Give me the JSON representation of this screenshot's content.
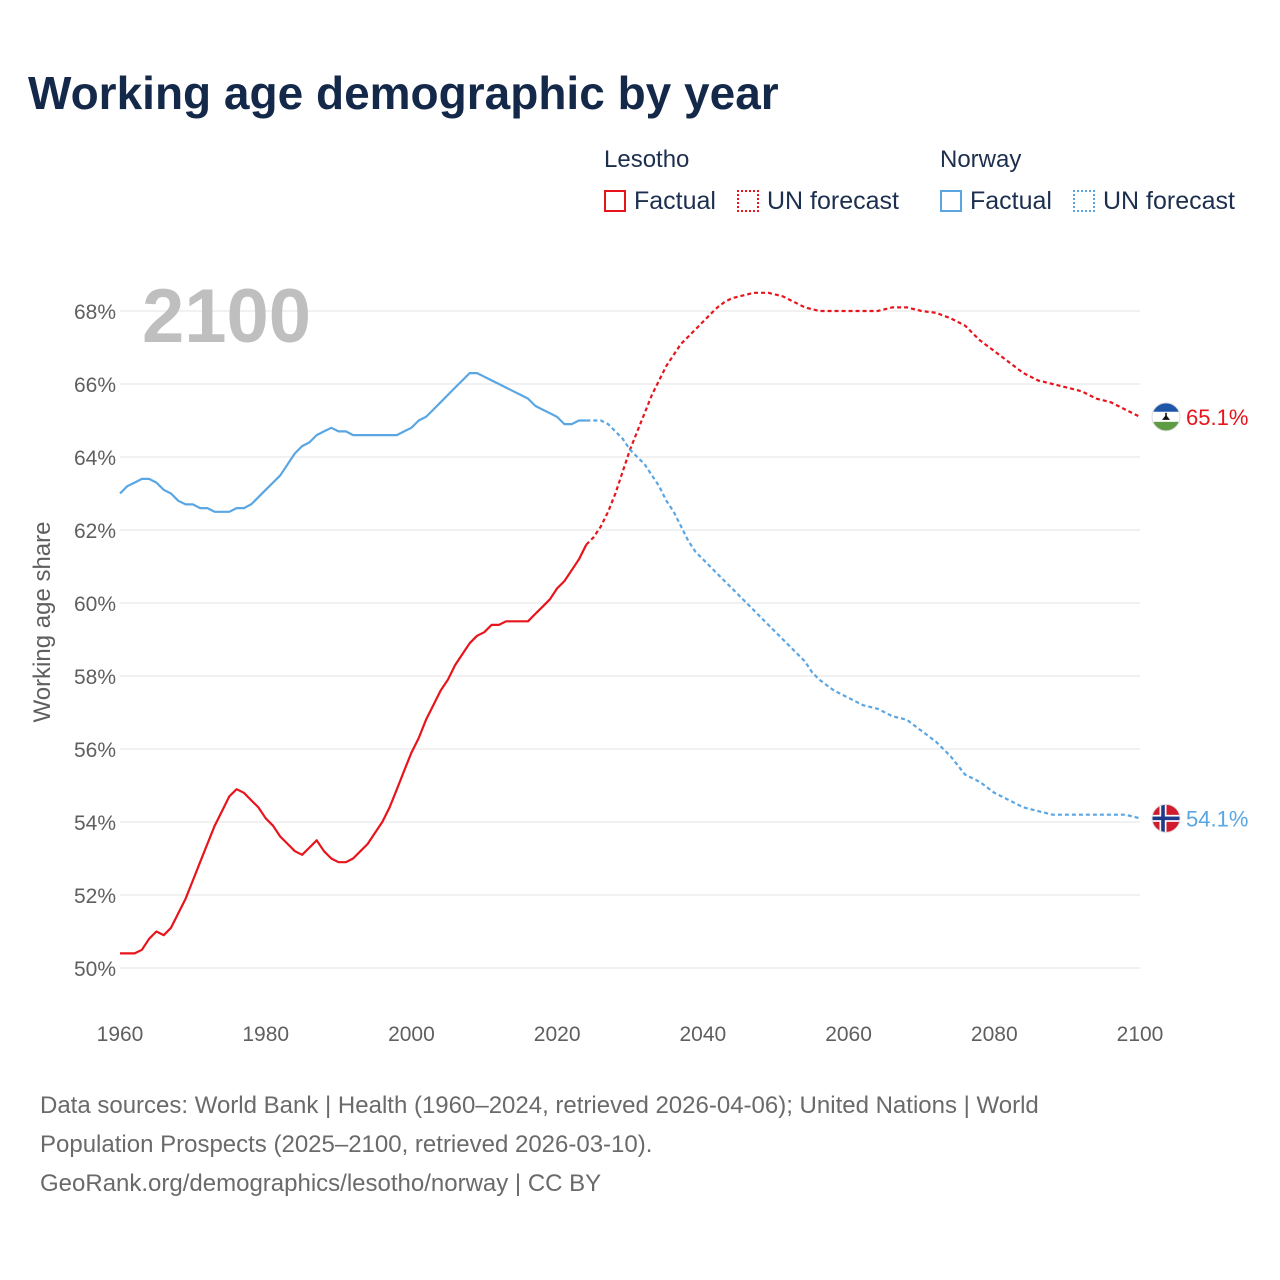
{
  "title": "Working age demographic by year",
  "legend": {
    "groups": [
      {
        "name": "Lesotho",
        "factual_label": "Factual",
        "forecast_label": "UN forecast",
        "color": "#e8141c"
      },
      {
        "name": "Norway",
        "factual_label": "Factual",
        "forecast_label": "UN forecast",
        "color": "#5aa6e3"
      }
    ]
  },
  "year_overlay": "2100",
  "footer": {
    "line1": "Data sources: World Bank | Health (1960–2024, retrieved 2026-04-06); United Nations | World",
    "line2": "Population Prospects (2025–2100, retrieved 2026-03-10).",
    "line3": "GeoRank.org/demographics/lesotho/norway | CC BY"
  },
  "chart_data": {
    "type": "line",
    "title": "Working age demographic by year",
    "xlabel": "",
    "ylabel": "Working age share",
    "xlim": [
      1960,
      2100
    ],
    "ylim": [
      50,
      69
    ],
    "x_ticks": [
      1960,
      1980,
      2000,
      2020,
      2040,
      2060,
      2080,
      2100
    ],
    "x_tick_labels": [
      "1960",
      "1980",
      "2000",
      "2020",
      "2040",
      "2060",
      "2080",
      "2100"
    ],
    "y_ticks": [
      50,
      52,
      54,
      56,
      58,
      60,
      62,
      64,
      66,
      68
    ],
    "y_tick_labels": [
      "50%",
      "52%",
      "54%",
      "56%",
      "58%",
      "60%",
      "62%",
      "64%",
      "66%",
      "68%"
    ],
    "grid": true,
    "factual_end_year": 2024,
    "series": [
      {
        "name": "Lesotho",
        "color": "#e8141c",
        "end_label": "65.1%",
        "flag": "lesotho-flag",
        "points": [
          [
            1960,
            50.4
          ],
          [
            1961,
            50.4
          ],
          [
            1962,
            50.4
          ],
          [
            1963,
            50.5
          ],
          [
            1964,
            50.8
          ],
          [
            1965,
            51.0
          ],
          [
            1966,
            50.9
          ],
          [
            1967,
            51.1
          ],
          [
            1968,
            51.5
          ],
          [
            1969,
            51.9
          ],
          [
            1970,
            52.4
          ],
          [
            1971,
            52.9
          ],
          [
            1972,
            53.4
          ],
          [
            1973,
            53.9
          ],
          [
            1974,
            54.3
          ],
          [
            1975,
            54.7
          ],
          [
            1976,
            54.9
          ],
          [
            1977,
            54.8
          ],
          [
            1978,
            54.6
          ],
          [
            1979,
            54.4
          ],
          [
            1980,
            54.1
          ],
          [
            1981,
            53.9
          ],
          [
            1982,
            53.6
          ],
          [
            1983,
            53.4
          ],
          [
            1984,
            53.2
          ],
          [
            1985,
            53.1
          ],
          [
            1986,
            53.3
          ],
          [
            1987,
            53.5
          ],
          [
            1988,
            53.2
          ],
          [
            1989,
            53.0
          ],
          [
            1990,
            52.9
          ],
          [
            1991,
            52.9
          ],
          [
            1992,
            53.0
          ],
          [
            1993,
            53.2
          ],
          [
            1994,
            53.4
          ],
          [
            1995,
            53.7
          ],
          [
            1996,
            54.0
          ],
          [
            1997,
            54.4
          ],
          [
            1998,
            54.9
          ],
          [
            1999,
            55.4
          ],
          [
            2000,
            55.9
          ],
          [
            2001,
            56.3
          ],
          [
            2002,
            56.8
          ],
          [
            2003,
            57.2
          ],
          [
            2004,
            57.6
          ],
          [
            2005,
            57.9
          ],
          [
            2006,
            58.3
          ],
          [
            2007,
            58.6
          ],
          [
            2008,
            58.9
          ],
          [
            2009,
            59.1
          ],
          [
            2010,
            59.2
          ],
          [
            2011,
            59.4
          ],
          [
            2012,
            59.4
          ],
          [
            2013,
            59.5
          ],
          [
            2014,
            59.5
          ],
          [
            2015,
            59.5
          ],
          [
            2016,
            59.5
          ],
          [
            2017,
            59.7
          ],
          [
            2018,
            59.9
          ],
          [
            2019,
            60.1
          ],
          [
            2020,
            60.4
          ],
          [
            2021,
            60.6
          ],
          [
            2022,
            60.9
          ],
          [
            2023,
            61.2
          ],
          [
            2024,
            61.6
          ],
          [
            2025,
            61.8
          ],
          [
            2026,
            62.1
          ],
          [
            2027,
            62.5
          ],
          [
            2028,
            63.0
          ],
          [
            2029,
            63.6
          ],
          [
            2030,
            64.2
          ],
          [
            2031,
            64.7
          ],
          [
            2032,
            65.2
          ],
          [
            2033,
            65.7
          ],
          [
            2034,
            66.1
          ],
          [
            2035,
            66.5
          ],
          [
            2036,
            66.8
          ],
          [
            2037,
            67.1
          ],
          [
            2038,
            67.3
          ],
          [
            2039,
            67.5
          ],
          [
            2040,
            67.7
          ],
          [
            2041,
            67.9
          ],
          [
            2042,
            68.1
          ],
          [
            2043,
            68.25
          ],
          [
            2044,
            68.35
          ],
          [
            2045,
            68.4
          ],
          [
            2046,
            68.45
          ],
          [
            2047,
            68.5
          ],
          [
            2048,
            68.5
          ],
          [
            2049,
            68.5
          ],
          [
            2050,
            68.45
          ],
          [
            2051,
            68.4
          ],
          [
            2052,
            68.3
          ],
          [
            2053,
            68.2
          ],
          [
            2054,
            68.1
          ],
          [
            2055,
            68.05
          ],
          [
            2056,
            68.0
          ],
          [
            2058,
            68.0
          ],
          [
            2060,
            68.0
          ],
          [
            2062,
            68.0
          ],
          [
            2064,
            68.0
          ],
          [
            2065,
            68.05
          ],
          [
            2066,
            68.1
          ],
          [
            2068,
            68.1
          ],
          [
            2070,
            68.0
          ],
          [
            2072,
            67.95
          ],
          [
            2074,
            67.8
          ],
          [
            2076,
            67.6
          ],
          [
            2078,
            67.2
          ],
          [
            2080,
            66.9
          ],
          [
            2082,
            66.6
          ],
          [
            2084,
            66.3
          ],
          [
            2086,
            66.1
          ],
          [
            2088,
            66.0
          ],
          [
            2090,
            65.9
          ],
          [
            2092,
            65.8
          ],
          [
            2094,
            65.6
          ],
          [
            2096,
            65.5
          ],
          [
            2098,
            65.3
          ],
          [
            2100,
            65.1
          ]
        ]
      },
      {
        "name": "Norway",
        "color": "#5aa6e3",
        "end_label": "54.1%",
        "flag": "norway-flag",
        "points": [
          [
            1960,
            63.0
          ],
          [
            1961,
            63.2
          ],
          [
            1962,
            63.3
          ],
          [
            1963,
            63.4
          ],
          [
            1964,
            63.4
          ],
          [
            1965,
            63.3
          ],
          [
            1966,
            63.1
          ],
          [
            1967,
            63.0
          ],
          [
            1968,
            62.8
          ],
          [
            1969,
            62.7
          ],
          [
            1970,
            62.7
          ],
          [
            1971,
            62.6
          ],
          [
            1972,
            62.6
          ],
          [
            1973,
            62.5
          ],
          [
            1974,
            62.5
          ],
          [
            1975,
            62.5
          ],
          [
            1976,
            62.6
          ],
          [
            1977,
            62.6
          ],
          [
            1978,
            62.7
          ],
          [
            1979,
            62.9
          ],
          [
            1980,
            63.1
          ],
          [
            1981,
            63.3
          ],
          [
            1982,
            63.5
          ],
          [
            1983,
            63.8
          ],
          [
            1984,
            64.1
          ],
          [
            1985,
            64.3
          ],
          [
            1986,
            64.4
          ],
          [
            1987,
            64.6
          ],
          [
            1988,
            64.7
          ],
          [
            1989,
            64.8
          ],
          [
            1990,
            64.7
          ],
          [
            1991,
            64.7
          ],
          [
            1992,
            64.6
          ],
          [
            1993,
            64.6
          ],
          [
            1994,
            64.6
          ],
          [
            1995,
            64.6
          ],
          [
            1996,
            64.6
          ],
          [
            1997,
            64.6
          ],
          [
            1998,
            64.6
          ],
          [
            1999,
            64.7
          ],
          [
            2000,
            64.8
          ],
          [
            2001,
            65.0
          ],
          [
            2002,
            65.1
          ],
          [
            2003,
            65.3
          ],
          [
            2004,
            65.5
          ],
          [
            2005,
            65.7
          ],
          [
            2006,
            65.9
          ],
          [
            2007,
            66.1
          ],
          [
            2008,
            66.3
          ],
          [
            2009,
            66.3
          ],
          [
            2010,
            66.2
          ],
          [
            2011,
            66.1
          ],
          [
            2012,
            66.0
          ],
          [
            2013,
            65.9
          ],
          [
            2014,
            65.8
          ],
          [
            2015,
            65.7
          ],
          [
            2016,
            65.6
          ],
          [
            2017,
            65.4
          ],
          [
            2018,
            65.3
          ],
          [
            2019,
            65.2
          ],
          [
            2020,
            65.1
          ],
          [
            2021,
            64.9
          ],
          [
            2022,
            64.9
          ],
          [
            2023,
            65.0
          ],
          [
            2024,
            65.0
          ],
          [
            2025,
            65.0
          ],
          [
            2026,
            65.0
          ],
          [
            2027,
            64.9
          ],
          [
            2028,
            64.7
          ],
          [
            2029,
            64.5
          ],
          [
            2030,
            64.2
          ],
          [
            2031,
            64.0
          ],
          [
            2032,
            63.8
          ],
          [
            2033,
            63.5
          ],
          [
            2034,
            63.2
          ],
          [
            2035,
            62.8
          ],
          [
            2036,
            62.5
          ],
          [
            2037,
            62.1
          ],
          [
            2038,
            61.7
          ],
          [
            2039,
            61.4
          ],
          [
            2040,
            61.2
          ],
          [
            2041,
            61.0
          ],
          [
            2042,
            60.8
          ],
          [
            2043,
            60.6
          ],
          [
            2044,
            60.4
          ],
          [
            2045,
            60.2
          ],
          [
            2046,
            60.0
          ],
          [
            2047,
            59.8
          ],
          [
            2048,
            59.6
          ],
          [
            2049,
            59.4
          ],
          [
            2050,
            59.2
          ],
          [
            2051,
            59.0
          ],
          [
            2052,
            58.8
          ],
          [
            2053,
            58.6
          ],
          [
            2054,
            58.4
          ],
          [
            2055,
            58.1
          ],
          [
            2056,
            57.9
          ],
          [
            2058,
            57.6
          ],
          [
            2060,
            57.4
          ],
          [
            2062,
            57.2
          ],
          [
            2064,
            57.1
          ],
          [
            2066,
            56.9
          ],
          [
            2068,
            56.8
          ],
          [
            2070,
            56.5
          ],
          [
            2072,
            56.2
          ],
          [
            2074,
            55.8
          ],
          [
            2076,
            55.3
          ],
          [
            2078,
            55.1
          ],
          [
            2080,
            54.8
          ],
          [
            2082,
            54.6
          ],
          [
            2084,
            54.4
          ],
          [
            2086,
            54.3
          ],
          [
            2088,
            54.2
          ],
          [
            2090,
            54.2
          ],
          [
            2092,
            54.2
          ],
          [
            2094,
            54.2
          ],
          [
            2096,
            54.2
          ],
          [
            2098,
            54.2
          ],
          [
            2100,
            54.1
          ]
        ]
      }
    ]
  }
}
